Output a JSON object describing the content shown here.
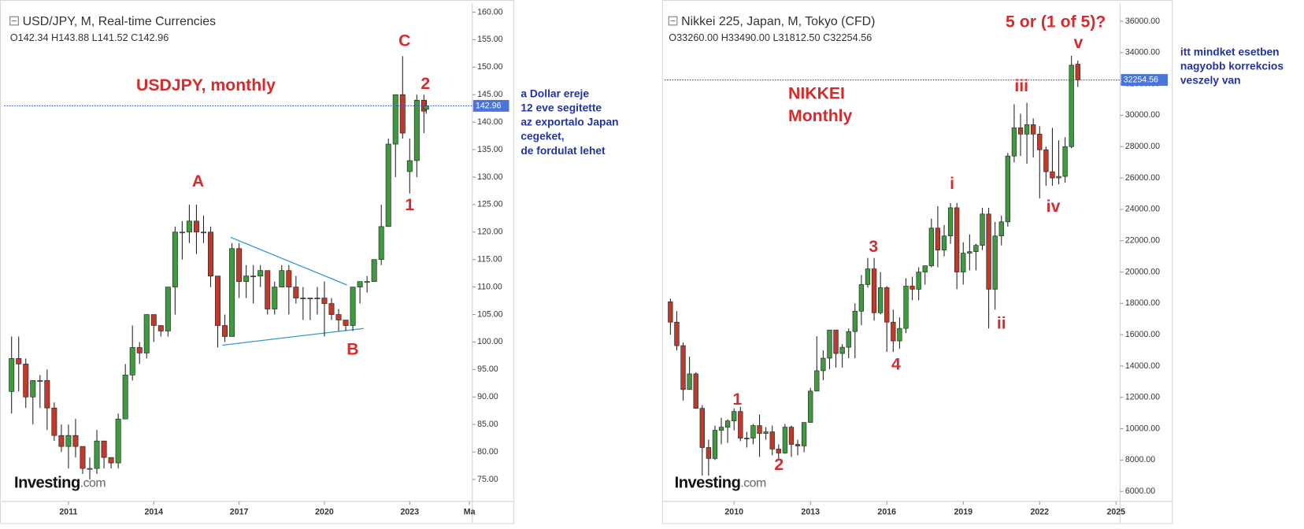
{
  "chart_data": [
    {
      "type": "candlestick",
      "title": "USD/JPY, M, Real-time Currencies",
      "ohlc_header": "O142.34 H143.88 L141.52 C142.96",
      "label_lines": [
        "USDJPY, monthly"
      ],
      "brand": "Investing",
      "brand_suffix": ".com",
      "annotations": [
        "A",
        "B",
        "C",
        "1",
        "2"
      ],
      "notes": [
        "a Dollar ereje",
        "12 eve segitette",
        "az exportalo Japan",
        "cegeket,",
        "de fordulat lehet"
      ],
      "up_color": "#3f9a3f",
      "down_color": "#c0392b",
      "note_color": "#2233aa",
      "label_color": "#d42c2c",
      "x": [
        2009.0,
        2009.25,
        2009.5,
        2009.75,
        2010.0,
        2010.25,
        2010.5,
        2010.75,
        2011.0,
        2011.25,
        2011.5,
        2011.75,
        2012.0,
        2012.25,
        2012.5,
        2012.75,
        2013.0,
        2013.25,
        2013.5,
        2013.75,
        2014.0,
        2014.25,
        2014.5,
        2014.75,
        2015.0,
        2015.25,
        2015.5,
        2015.75,
        2016.0,
        2016.25,
        2016.5,
        2016.75,
        2017.0,
        2017.25,
        2017.5,
        2017.75,
        2018.0,
        2018.25,
        2018.5,
        2018.75,
        2019.0,
        2019.25,
        2019.5,
        2019.75,
        2020.0,
        2020.25,
        2020.5,
        2020.75,
        2021.0,
        2021.25,
        2021.5,
        2021.75,
        2022.0,
        2022.25,
        2022.5,
        2022.75,
        2023.0,
        2023.25,
        2023.5,
        2023.58
      ],
      "open": [
        91,
        97,
        96,
        90,
        93,
        93,
        88,
        83,
        81,
        83,
        81,
        77,
        77,
        82,
        79,
        78,
        86,
        94,
        99,
        98,
        105,
        103,
        102,
        110,
        120,
        120,
        122,
        120,
        120,
        112,
        103,
        101,
        117,
        111,
        112,
        112,
        113,
        106,
        110,
        113,
        110,
        108,
        108,
        108,
        108,
        107,
        105,
        104,
        103,
        110,
        111,
        111,
        115,
        121,
        136,
        145,
        131,
        133,
        144,
        142.34
      ],
      "high": [
        101,
        101,
        97,
        93,
        94,
        95,
        89,
        85,
        85,
        86,
        81,
        79,
        84,
        82,
        79,
        87,
        96,
        103,
        100,
        105,
        105,
        103,
        110,
        121,
        122,
        125,
        125,
        123,
        121,
        112,
        105,
        118,
        118,
        114,
        114,
        114,
        113,
        111,
        114,
        114,
        112,
        110,
        108,
        110,
        111,
        108,
        106,
        104,
        110,
        111,
        112,
        115,
        125,
        137,
        145,
        152,
        137,
        145,
        145,
        143.88
      ],
      "low": [
        87,
        91,
        88,
        85,
        88,
        84,
        82,
        80,
        77,
        79,
        76,
        75,
        76,
        77,
        77,
        77,
        86,
        93,
        96,
        97,
        100,
        101,
        101,
        105,
        115,
        118,
        116,
        118,
        110,
        99,
        100,
        101,
        108,
        108,
        107,
        110,
        105,
        105,
        110,
        105,
        107,
        104,
        104,
        105,
        101,
        104,
        102,
        102,
        102,
        107,
        109,
        111,
        114,
        121,
        130,
        137,
        127,
        130,
        138,
        141.52
      ],
      "close": [
        97,
        96,
        90,
        93,
        93,
        88,
        83,
        81,
        83,
        81,
        77,
        77,
        82,
        79,
        78,
        86,
        94,
        99,
        98,
        105,
        103,
        102,
        110,
        120,
        120,
        122,
        120,
        120,
        112,
        103,
        101,
        117,
        111,
        112,
        112,
        113,
        106,
        110,
        113,
        110,
        108,
        108,
        108,
        108,
        107,
        105,
        104,
        103,
        110,
        111,
        111,
        115,
        121,
        136,
        145,
        138,
        133,
        144,
        142,
        142.96
      ],
      "last_price": 142.96,
      "xlim": [
        2008.74,
        2025.2
      ],
      "xticks": [
        2011,
        2014,
        2017,
        2020,
        2023,
        {
          "value": 2025.1,
          "label": "Ma"
        }
      ],
      "ylim": [
        71,
        161
      ],
      "yticks": [
        {
          "value": 75,
          "label": "75.00"
        },
        {
          "value": 80,
          "label": "80.00"
        },
        {
          "value": 85,
          "label": "85.00"
        },
        {
          "value": 90,
          "label": "90.00"
        },
        {
          "value": 95,
          "label": "95.00"
        },
        {
          "value": 100,
          "label": "100.00"
        },
        {
          "value": 105,
          "label": "105.00"
        },
        {
          "value": 110,
          "label": "110.00"
        },
        {
          "value": 115,
          "label": "115.00"
        },
        {
          "value": 120,
          "label": "120.00"
        },
        {
          "value": 125,
          "label": "125.00"
        },
        {
          "value": 130,
          "label": "130.00"
        },
        {
          "value": 135,
          "label": "135.00"
        },
        {
          "value": 140,
          "label": "140.00"
        },
        {
          "value": 145,
          "label": "145.00"
        },
        {
          "value": 150,
          "label": "150.00"
        },
        {
          "value": 155,
          "label": "155.00"
        },
        {
          "value": 160,
          "label": "160.00"
        }
      ]
    },
    {
      "type": "candlestick",
      "title": "Nikkei 225, Japan, M, Tokyo (CFD)",
      "ohlc_header": "O33260.00 H33490.00 L31812.50 C32254.56",
      "label_lines": [
        "NIKKEI",
        "Monthly"
      ],
      "brand": "Investing",
      "brand_suffix": ".com",
      "annotations": [
        "1",
        "2",
        "3",
        "4",
        "i",
        "ii",
        "iii",
        "iv",
        "v",
        "5 or (1 of 5)?"
      ],
      "notes": [
        "itt mindket esetben",
        "nagyobb korrekcios",
        "veszely van"
      ],
      "up_color": "#3f9a3f",
      "down_color": "#c0392b",
      "note_color": "#2233aa",
      "label_color": "#d42c2c",
      "x": [
        2007.5,
        2007.75,
        2008.0,
        2008.25,
        2008.5,
        2008.75,
        2009.0,
        2009.25,
        2009.5,
        2009.75,
        2010.0,
        2010.25,
        2010.5,
        2010.75,
        2011.0,
        2011.25,
        2011.5,
        2011.75,
        2012.0,
        2012.25,
        2012.5,
        2012.75,
        2013.0,
        2013.25,
        2013.5,
        2013.75,
        2014.0,
        2014.25,
        2014.5,
        2014.75,
        2015.0,
        2015.25,
        2015.5,
        2015.75,
        2016.0,
        2016.25,
        2016.5,
        2016.75,
        2017.0,
        2017.25,
        2017.5,
        2017.75,
        2018.0,
        2018.25,
        2018.5,
        2018.75,
        2019.0,
        2019.25,
        2019.5,
        2019.75,
        2020.0,
        2020.25,
        2020.5,
        2020.75,
        2021.0,
        2021.25,
        2021.5,
        2021.75,
        2022.0,
        2022.25,
        2022.5,
        2022.75,
        2023.0,
        2023.25,
        2023.5
      ],
      "open": [
        18100,
        16800,
        15300,
        12500,
        13500,
        11300,
        8800,
        8100,
        9900,
        10100,
        10500,
        11100,
        9400,
        9400,
        10200,
        9700,
        9800,
        8700,
        8450,
        10100,
        9000,
        8900,
        10400,
        12400,
        13700,
        14500,
        16300,
        14800,
        15200,
        16200,
        17500,
        19200,
        20200,
        17400,
        19000,
        16800,
        15600,
        16400,
        19100,
        18900,
        20000,
        20400,
        22800,
        21400,
        22300,
        24100,
        20000,
        21200,
        21300,
        21700,
        23700,
        18900,
        22300,
        23200,
        27400,
        29200,
        28800,
        29400,
        28800,
        27800,
        26400,
        26000,
        26100,
        28000,
        33260
      ],
      "high": [
        18300,
        17500,
        15500,
        14600,
        13600,
        11500,
        9300,
        10200,
        10700,
        10600,
        11300,
        11400,
        9800,
        10300,
        10900,
        10100,
        10200,
        9000,
        10300,
        10200,
        9300,
        10400,
        12600,
        15900,
        15000,
        16300,
        16300,
        15400,
        16400,
        18000,
        19800,
        20900,
        20900,
        20000,
        19100,
        17600,
        17100,
        19600,
        19700,
        20300,
        20400,
        23400,
        24200,
        23000,
        24400,
        24400,
        21900,
        22400,
        21800,
        24100,
        24100,
        23200,
        23600,
        27600,
        30700,
        30100,
        30800,
        29800,
        29300,
        28000,
        29200,
        28400,
        28600,
        33800,
        33490
      ],
      "low": [
        16000,
        15000,
        11800,
        12500,
        11500,
        7000,
        7000,
        8000,
        9000,
        9100,
        9900,
        9200,
        8800,
        9000,
        8200,
        9300,
        8300,
        8100,
        8400,
        8200,
        8300,
        8500,
        10400,
        12400,
        13100,
        13800,
        13900,
        13900,
        14500,
        14500,
        16600,
        19000,
        16900,
        17300,
        14900,
        14900,
        15100,
        16100,
        18200,
        18200,
        19200,
        20300,
        20300,
        21000,
        21800,
        18900,
        19200,
        20100,
        20100,
        21400,
        16400,
        17600,
        21700,
        22900,
        27000,
        27400,
        26900,
        27300,
        24700,
        25500,
        25500,
        25600,
        25700,
        27900,
        31812.5
      ],
      "close": [
        16800,
        15300,
        12500,
        13500,
        11300,
        8800,
        8100,
        9900,
        10100,
        10500,
        11100,
        9400,
        9400,
        10200,
        9700,
        9800,
        8700,
        8450,
        10100,
        9000,
        8900,
        10400,
        12400,
        13700,
        14500,
        16300,
        14800,
        15200,
        16200,
        17500,
        19200,
        20200,
        17400,
        19000,
        16800,
        15600,
        16400,
        19100,
        18900,
        20000,
        20400,
        22800,
        21400,
        22300,
        24100,
        20000,
        21200,
        21300,
        21700,
        23700,
        18900,
        22300,
        23200,
        27400,
        29200,
        28800,
        29400,
        28800,
        27800,
        26400,
        26000,
        26100,
        28000,
        33200,
        32254.56
      ],
      "last_price": 32254.56,
      "xlim": [
        2007.27,
        2025.16
      ],
      "xticks": [
        2010,
        2013,
        2016,
        2019,
        2022,
        2025
      ],
      "ylim": [
        5360,
        36930
      ],
      "yticks": [
        {
          "value": 6000,
          "label": "6000.00"
        },
        {
          "value": 8000,
          "label": "8000.00"
        },
        {
          "value": 10000,
          "label": "10000.00"
        },
        {
          "value": 12000,
          "label": "12000.00"
        },
        {
          "value": 14000,
          "label": "14000.00"
        },
        {
          "value": 16000,
          "label": "16000.00"
        },
        {
          "value": 18000,
          "label": "18000.00"
        },
        {
          "value": 20000,
          "label": "20000.00"
        },
        {
          "value": 22000,
          "label": "22000.00"
        },
        {
          "value": 24000,
          "label": "24000.00"
        },
        {
          "value": 26000,
          "label": "26000.00"
        },
        {
          "value": 28000,
          "label": "28000.00"
        },
        {
          "value": 30000,
          "label": "30000.00"
        },
        {
          "value": 32000,
          "label": "32000.00"
        },
        {
          "value": 34000,
          "label": "34000.00"
        },
        {
          "value": 36000,
          "label": "36000.00"
        }
      ]
    }
  ]
}
